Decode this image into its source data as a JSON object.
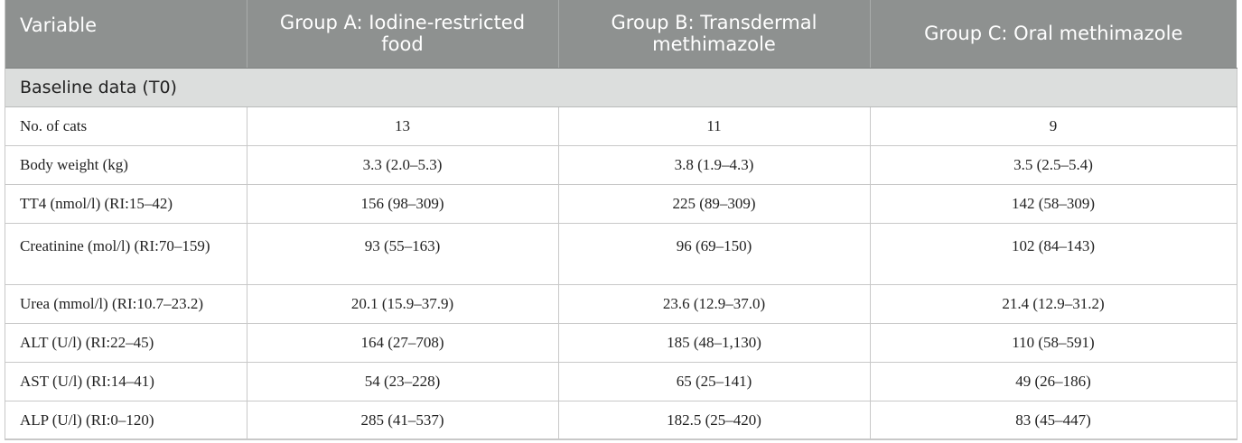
{
  "header": {
    "variable": "Variable",
    "group_a": "Group A: Iodine-restricted food",
    "group_b": "Group B: Transdermal methimazole",
    "group_c": "Group C: Oral methimazole"
  },
  "section": "Baseline data (T0)",
  "rows": [
    {
      "label": "No. of cats",
      "a": "13",
      "b": "11",
      "c": "9"
    },
    {
      "label": "Body weight (kg)",
      "a": "3.3 (2.0–5.3)",
      "b": "3.8 (1.9–4.3)",
      "c": "3.5 (2.5–5.4)"
    },
    {
      "label": "TT4 (nmol/l) (RI:15–42)",
      "a": "156 (98–309)",
      "b": "225 (89–309)",
      "c": "142 (58–309)"
    },
    {
      "label": "Creatinine (mol/l) (RI:70–159)",
      "a": "93 (55–163)",
      "b": "96 (69–150)",
      "c": "102 (84–143)"
    },
    {
      "label": "Urea (mmol/l) (RI:10.7–23.2)",
      "a": "20.1 (15.9–37.9)",
      "b": "23.6 (12.9–37.0)",
      "c": "21.4 (12.9–31.2)"
    },
    {
      "label": "ALT (U/l) (RI:22–45)",
      "a": "164 (27–708)",
      "b": "185 (48–1,130)",
      "c": "110 (58–591)"
    },
    {
      "label": "AST (U/l) (RI:14–41)",
      "a": "54 (23–228)",
      "b": "65 (25–141)",
      "c": "49 (26–186)"
    },
    {
      "label": "ALP (U/l) (RI:0–120)",
      "a": "285 (41–537)",
      "b": "182.5 (25–420)",
      "c": "83 (45–447)"
    }
  ]
}
